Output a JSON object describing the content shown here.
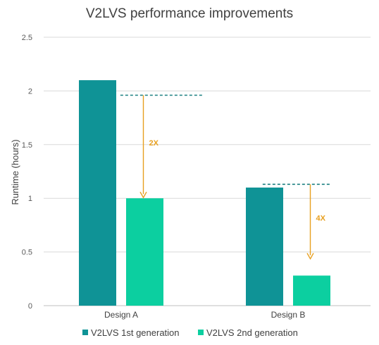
{
  "chart_data": {
    "type": "bar",
    "title": "V2LVS performance improvements",
    "xlabel": "",
    "ylabel": "Runtime (hours)",
    "ylim": [
      0,
      2.5
    ],
    "yticks": [
      "0",
      "0.5",
      "1",
      "1.5",
      "2",
      "2.5"
    ],
    "categories": [
      "Design A",
      "Design B"
    ],
    "series": [
      {
        "name": "V2LVS 1st generation",
        "values": [
          2.1,
          1.1
        ],
        "color": "#0f9396"
      },
      {
        "name": "V2LVS 2nd generation",
        "values": [
          1.0,
          0.28
        ],
        "color": "#0ccfa0"
      }
    ],
    "grid": true,
    "legend": "bottom",
    "annotations": [
      {
        "category": "Design A",
        "label": "2X",
        "from": 1.96,
        "to": 1.0
      },
      {
        "category": "Design B",
        "label": "4X",
        "from": 1.13,
        "to": 0.43
      }
    ],
    "annotation_color": "#e8a020",
    "reference_line_color": "#1a7f80",
    "gridline_color": "#d9d9d9",
    "axis_color": "#bfbfbf"
  }
}
